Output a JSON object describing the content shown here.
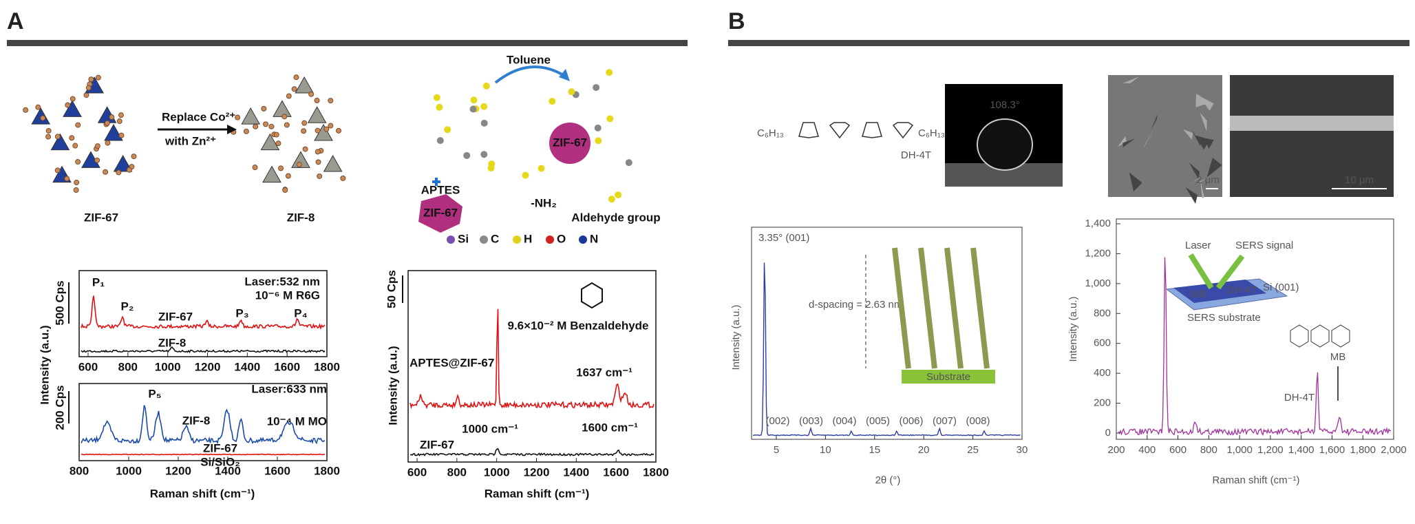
{
  "panel_a": {
    "label": "A",
    "exchange": {
      "from": "ZIF-67",
      "to": "ZIF-8",
      "step_line1": "Replace Co²⁺",
      "step_line2": "with Zn²⁺"
    },
    "grafting": {
      "solvent": "Toluene",
      "silane": "APTES",
      "core": "ZIF-67",
      "core_product": "ZIF-67",
      "amine": "-NH₂",
      "target": "Aldehyde group",
      "atoms": [
        "Si",
        "C",
        "H",
        "O",
        "N"
      ]
    },
    "spectra_dyes": {
      "y_label": "Intensity (a.u.)",
      "x_label": "Raman shift (cm⁻¹)",
      "top": {
        "scale": "500 Cps",
        "laser": "Laser:532 nm",
        "analyte": "10⁻⁶ M R6G",
        "traces": [
          "ZIF-67",
          "ZIF-8"
        ],
        "peaks": [
          "P₁",
          "P₂",
          "P₃",
          "P₄"
        ],
        "x_ticks": [
          "600",
          "800",
          "1000",
          "1200",
          "1400",
          "1600",
          "1800"
        ]
      },
      "bottom": {
        "scale": "200 Cps",
        "laser": "Laser:633 nm",
        "analyte": "10⁻⁴ M MO",
        "traces": [
          "ZIF-8",
          "ZIF-67",
          "Si/SiO₂"
        ],
        "peaks": [
          "P₅"
        ],
        "x_ticks": [
          "800",
          "1000",
          "1200",
          "1400",
          "1600",
          "1800"
        ]
      }
    },
    "spectra_aldehyde": {
      "y_label": "Intensity (a.u.)",
      "x_label": "Raman shift (cm⁻¹)",
      "scale": "50 Cps",
      "analyte": "9.6×10⁻² M Benzaldehyde",
      "traces": [
        "APTES@ZIF-67",
        "ZIF-67"
      ],
      "bands": [
        "1637 cm⁻¹",
        "1000 cm⁻¹",
        "1600 cm⁻¹"
      ],
      "x_ticks": [
        "600",
        "800",
        "1000",
        "1200",
        "1400",
        "1600",
        "1800"
      ]
    }
  },
  "panel_b": {
    "label": "B",
    "molecule": {
      "chain_left": "C₆H₁₃",
      "chain_right": "C₆H₁₃",
      "name": "DH-4T"
    },
    "contact_angle": "108.3°",
    "sem_scale_bars": [
      "2 μm",
      "10 μm"
    ],
    "xrd": {
      "y_label": "Intensity (a.u.)",
      "x_label": "2θ (°)",
      "x_ticks": [
        "5",
        "10",
        "15",
        "20",
        "25",
        "30"
      ],
      "first_peak": "3.35° (001)",
      "peaks": [
        "(002)",
        "(003)",
        "(004)",
        "(005)",
        "(006)",
        "(007)",
        "(008)"
      ],
      "spacing": "d-spacing = 2.63 nm",
      "substrate": "Substrate"
    },
    "raman": {
      "y_label": "Intensity (a.u.)",
      "x_label": "Raman shift (cm⁻¹)",
      "y_ticks": [
        "0",
        "200",
        "400",
        "600",
        "800",
        "1,000",
        "1,200",
        "1,400"
      ],
      "x_ticks": [
        "200",
        "400",
        "600",
        "800",
        "1,000",
        "1,200",
        "1,400",
        "1,600",
        "1,800",
        "2,000"
      ],
      "laser": "Laser",
      "signal": "SERS signal",
      "substrate": "SERS substrate",
      "layers": [
        "MB",
        "DH-4T",
        "Si (001)"
      ],
      "traces": [
        "DH-4T",
        "MB"
      ]
    }
  }
}
